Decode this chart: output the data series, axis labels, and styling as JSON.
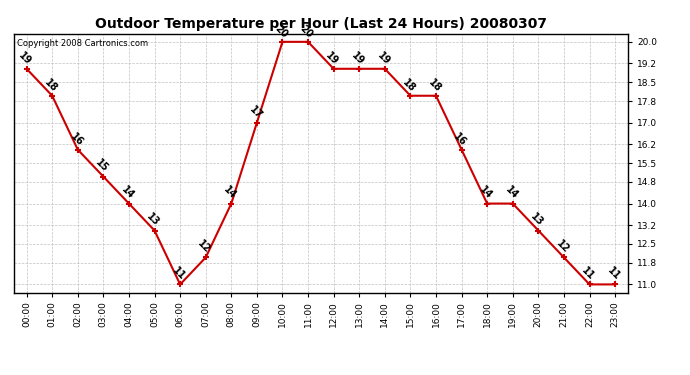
{
  "title": "Outdoor Temperature per Hour (Last 24 Hours) 20080307",
  "copyright": "Copyright 2008 Cartronics.com",
  "hours": [
    "00:00",
    "01:00",
    "02:00",
    "03:00",
    "04:00",
    "05:00",
    "06:00",
    "07:00",
    "08:00",
    "09:00",
    "10:00",
    "11:00",
    "12:00",
    "13:00",
    "14:00",
    "15:00",
    "16:00",
    "17:00",
    "18:00",
    "19:00",
    "20:00",
    "21:00",
    "22:00",
    "23:00"
  ],
  "values": [
    19,
    18,
    16,
    15,
    14,
    13,
    11,
    12,
    14,
    17,
    20,
    20,
    19,
    19,
    19,
    18,
    18,
    16,
    14,
    14,
    13,
    12,
    11,
    11
  ],
  "line_color": "#cc0000",
  "marker_color": "#cc0000",
  "bg_color": "#ffffff",
  "grid_color": "#bbbbbb",
  "ylim_min": 10.7,
  "ylim_max": 20.3,
  "yticks": [
    11.0,
    11.8,
    12.5,
    13.2,
    14.0,
    14.8,
    15.5,
    16.2,
    17.0,
    17.8,
    18.5,
    19.2,
    20.0
  ],
  "title_fontsize": 10,
  "label_fontsize": 7,
  "tick_fontsize": 6.5,
  "copyright_fontsize": 6
}
